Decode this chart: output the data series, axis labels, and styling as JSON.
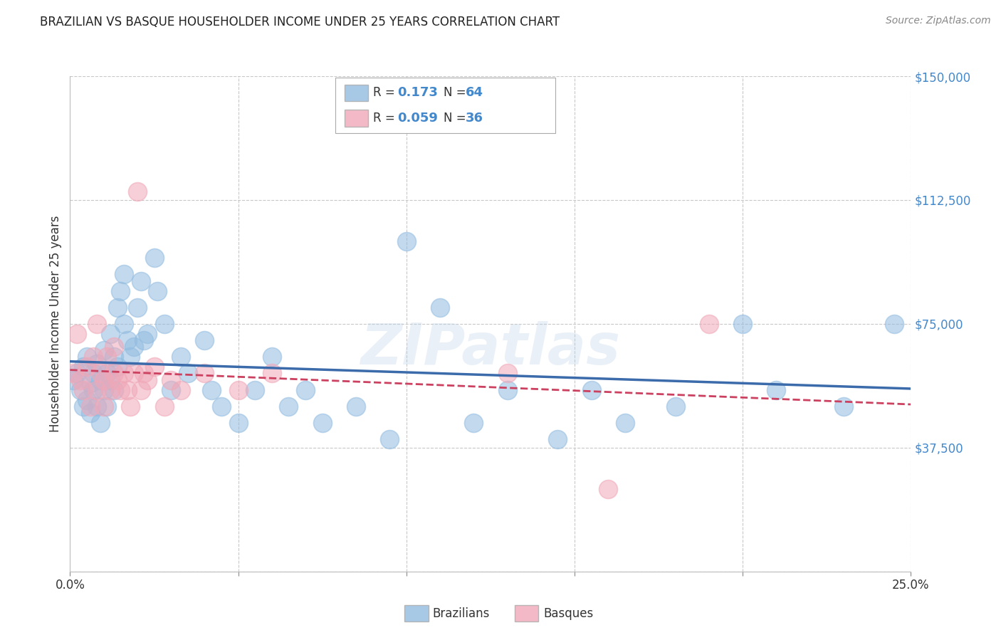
{
  "title": "BRAZILIAN VS BASQUE HOUSEHOLDER INCOME UNDER 25 YEARS CORRELATION CHART",
  "source": "Source: ZipAtlas.com",
  "ylabel": "Householder Income Under 25 years",
  "watermark": "ZIPatlas",
  "xlim": [
    0.0,
    0.25
  ],
  "ylim": [
    0,
    150000
  ],
  "yticks": [
    0,
    37500,
    75000,
    112500,
    150000
  ],
  "ytick_labels": [
    "",
    "$37,500",
    "$75,000",
    "$112,500",
    "$150,000"
  ],
  "xticks": [
    0.0,
    0.05,
    0.1,
    0.15,
    0.2,
    0.25
  ],
  "xtick_labels": [
    "0.0%",
    "",
    "",
    "",
    "",
    "25.0%"
  ],
  "brazilian_R": 0.173,
  "brazilian_N": 64,
  "basque_R": 0.059,
  "basque_N": 36,
  "blue_color": "#92bce0",
  "pink_color": "#f0a8b8",
  "blue_line_color": "#3b6baa",
  "pink_line_color": "#cc4060",
  "grid_color": "#c8c8c8",
  "background_color": "#ffffff",
  "title_color": "#222222",
  "axis_label_color": "#333333",
  "ytick_color": "#4488cc",
  "xtick_color": "#333333",
  "source_color": "#888888",
  "brazil_x": [
    0.001,
    0.002,
    0.003,
    0.004,
    0.004,
    0.005,
    0.005,
    0.006,
    0.006,
    0.007,
    0.007,
    0.008,
    0.008,
    0.009,
    0.009,
    0.01,
    0.01,
    0.011,
    0.011,
    0.012,
    0.012,
    0.013,
    0.013,
    0.014,
    0.014,
    0.015,
    0.016,
    0.016,
    0.017,
    0.018,
    0.019,
    0.02,
    0.021,
    0.022,
    0.023,
    0.025,
    0.026,
    0.028,
    0.03,
    0.033,
    0.035,
    0.04,
    0.042,
    0.045,
    0.05,
    0.055,
    0.06,
    0.065,
    0.07,
    0.075,
    0.085,
    0.095,
    0.1,
    0.11,
    0.12,
    0.13,
    0.145,
    0.155,
    0.165,
    0.18,
    0.2,
    0.21,
    0.23,
    0.245
  ],
  "brazil_y": [
    58000,
    60000,
    55000,
    62000,
    50000,
    65000,
    52000,
    57000,
    48000,
    60000,
    55000,
    63000,
    50000,
    58000,
    45000,
    67000,
    55000,
    60000,
    50000,
    72000,
    58000,
    65000,
    55000,
    80000,
    62000,
    85000,
    90000,
    75000,
    70000,
    65000,
    68000,
    80000,
    88000,
    70000,
    72000,
    95000,
    85000,
    75000,
    55000,
    65000,
    60000,
    70000,
    55000,
    50000,
    45000,
    55000,
    65000,
    50000,
    55000,
    45000,
    50000,
    40000,
    100000,
    80000,
    45000,
    55000,
    40000,
    55000,
    45000,
    50000,
    75000,
    55000,
    50000,
    75000
  ],
  "basque_x": [
    0.001,
    0.002,
    0.003,
    0.004,
    0.005,
    0.006,
    0.007,
    0.008,
    0.008,
    0.009,
    0.01,
    0.01,
    0.011,
    0.012,
    0.013,
    0.013,
    0.014,
    0.015,
    0.016,
    0.017,
    0.018,
    0.019,
    0.02,
    0.021,
    0.022,
    0.023,
    0.025,
    0.028,
    0.03,
    0.033,
    0.04,
    0.05,
    0.06,
    0.13,
    0.16,
    0.19
  ],
  "basque_y": [
    60000,
    72000,
    58000,
    55000,
    62000,
    50000,
    65000,
    55000,
    75000,
    60000,
    58000,
    50000,
    65000,
    55000,
    60000,
    68000,
    58000,
    55000,
    60000,
    55000,
    50000,
    60000,
    115000,
    55000,
    60000,
    58000,
    62000,
    50000,
    58000,
    55000,
    60000,
    55000,
    60000,
    60000,
    25000,
    75000
  ]
}
